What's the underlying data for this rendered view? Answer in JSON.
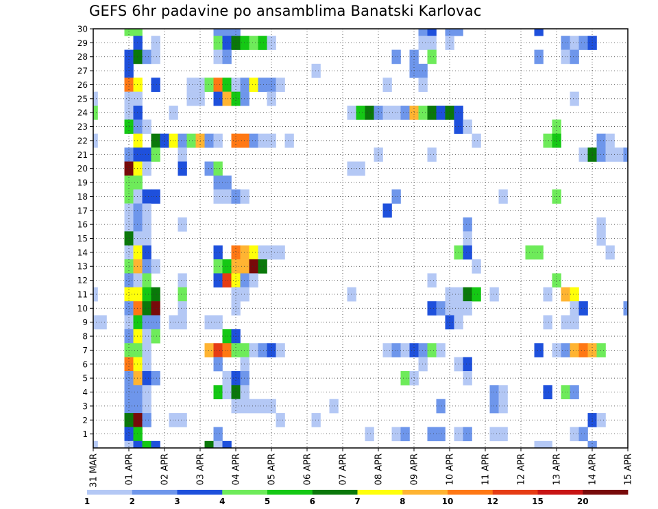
{
  "chart_data": {
    "type": "heatmap",
    "title": "GEFS 6hr padavine po ansamblima Banatski Karlovac",
    "y_range": [
      0,
      30
    ],
    "y_ticks": [
      1,
      2,
      3,
      4,
      5,
      6,
      7,
      8,
      9,
      10,
      11,
      12,
      13,
      14,
      15,
      16,
      17,
      18,
      19,
      20,
      21,
      22,
      23,
      24,
      25,
      26,
      27,
      28,
      29,
      30
    ],
    "x_time_step": "6hr",
    "x_range_steps": [
      0,
      60
    ],
    "x_ticks": [
      {
        "label": "31 MAR",
        "step": 0
      },
      {
        "label": "01 APR",
        "step": 4
      },
      {
        "label": "02 APR",
        "step": 8
      },
      {
        "label": "03 APR",
        "step": 12
      },
      {
        "label": "04 APR",
        "step": 16
      },
      {
        "label": "05 APR",
        "step": 20
      },
      {
        "label": "06 APR",
        "step": 24
      },
      {
        "label": "07 APR",
        "step": 28
      },
      {
        "label": "08 APR",
        "step": 32
      },
      {
        "label": "09 APR",
        "step": 36
      },
      {
        "label": "10 APR",
        "step": 40
      },
      {
        "label": "11 APR",
        "step": 44
      },
      {
        "label": "12 APR",
        "step": 48
      },
      {
        "label": "13 APR",
        "step": 52
      },
      {
        "label": "14 APR",
        "step": 56
      },
      {
        "label": "15 APR",
        "step": 60
      }
    ],
    "grid": true,
    "colorbar": {
      "boundaries": [
        "1",
        "2",
        "3",
        "4",
        "5",
        "6",
        "7",
        "8",
        "10",
        "12",
        "15",
        "20"
      ],
      "colors": [
        "#b4c8f5",
        "#6e96eb",
        "#1e50dc",
        "#6eeb5a",
        "#14c814",
        "#0a780a",
        "#ffff0a",
        "#ffb432",
        "#ff7814",
        "#e63c14",
        "#c81414",
        "#780a0a"
      ]
    },
    "cells": [
      [
        4,
        30,
        3
      ],
      [
        5,
        30,
        3
      ],
      [
        14,
        30,
        1
      ],
      [
        15,
        30,
        1
      ],
      [
        16,
        30,
        1
      ],
      [
        37,
        30,
        1
      ],
      [
        38,
        30,
        2
      ],
      [
        40,
        30,
        1
      ],
      [
        41,
        30,
        1
      ],
      [
        50,
        30,
        2
      ],
      [
        5,
        29,
        2
      ],
      [
        7,
        29,
        0
      ],
      [
        14,
        29,
        3
      ],
      [
        15,
        29,
        2
      ],
      [
        16,
        29,
        5
      ],
      [
        17,
        29,
        4
      ],
      [
        18,
        29,
        3
      ],
      [
        19,
        29,
        4
      ],
      [
        20,
        29,
        0
      ],
      [
        37,
        29,
        0
      ],
      [
        38,
        29,
        0
      ],
      [
        40,
        29,
        0
      ],
      [
        53,
        29,
        1
      ],
      [
        54,
        29,
        0
      ],
      [
        55,
        29,
        1
      ],
      [
        56,
        29,
        2
      ],
      [
        4,
        28,
        2
      ],
      [
        5,
        28,
        5
      ],
      [
        6,
        28,
        1
      ],
      [
        7,
        28,
        0
      ],
      [
        14,
        28,
        0
      ],
      [
        15,
        28,
        1
      ],
      [
        34,
        28,
        1
      ],
      [
        36,
        28,
        1
      ],
      [
        38,
        28,
        3
      ],
      [
        50,
        28,
        1
      ],
      [
        53,
        28,
        0
      ],
      [
        54,
        28,
        1
      ],
      [
        4,
        27,
        2
      ],
      [
        25,
        27,
        0
      ],
      [
        36,
        27,
        1
      ],
      [
        37,
        27,
        1
      ],
      [
        4,
        26,
        8
      ],
      [
        5,
        26,
        6
      ],
      [
        7,
        26,
        2
      ],
      [
        11,
        26,
        0
      ],
      [
        12,
        26,
        0
      ],
      [
        13,
        26,
        3
      ],
      [
        14,
        26,
        8
      ],
      [
        15,
        26,
        4
      ],
      [
        16,
        26,
        0
      ],
      [
        17,
        26,
        1
      ],
      [
        18,
        26,
        6
      ],
      [
        19,
        26,
        1
      ],
      [
        20,
        26,
        1
      ],
      [
        21,
        26,
        0
      ],
      [
        33,
        26,
        0
      ],
      [
        37,
        26,
        0
      ],
      [
        0,
        25,
        0
      ],
      [
        4,
        25,
        0
      ],
      [
        5,
        25,
        0
      ],
      [
        11,
        25,
        0
      ],
      [
        12,
        25,
        0
      ],
      [
        14,
        25,
        2
      ],
      [
        15,
        25,
        7
      ],
      [
        16,
        25,
        4
      ],
      [
        17,
        25,
        1
      ],
      [
        20,
        25,
        0
      ],
      [
        54,
        25,
        0
      ],
      [
        0,
        24,
        3
      ],
      [
        4,
        24,
        0
      ],
      [
        5,
        24,
        2
      ],
      [
        9,
        24,
        0
      ],
      [
        29,
        24,
        0
      ],
      [
        30,
        24,
        4
      ],
      [
        31,
        24,
        5
      ],
      [
        32,
        24,
        1
      ],
      [
        33,
        24,
        0
      ],
      [
        34,
        24,
        0
      ],
      [
        35,
        24,
        1
      ],
      [
        36,
        24,
        7
      ],
      [
        37,
        24,
        3
      ],
      [
        38,
        24,
        5
      ],
      [
        39,
        24,
        2
      ],
      [
        40,
        24,
        5
      ],
      [
        41,
        24,
        2
      ],
      [
        4,
        23,
        4
      ],
      [
        5,
        23,
        1
      ],
      [
        6,
        23,
        0
      ],
      [
        41,
        23,
        2
      ],
      [
        42,
        23,
        0
      ],
      [
        52,
        23,
        3
      ],
      [
        0,
        22,
        0
      ],
      [
        5,
        22,
        6
      ],
      [
        7,
        22,
        5
      ],
      [
        8,
        22,
        2
      ],
      [
        9,
        22,
        6
      ],
      [
        10,
        22,
        1
      ],
      [
        11,
        22,
        3
      ],
      [
        12,
        22,
        7
      ],
      [
        13,
        22,
        1
      ],
      [
        14,
        22,
        0
      ],
      [
        16,
        22,
        8
      ],
      [
        17,
        22,
        8
      ],
      [
        18,
        22,
        1
      ],
      [
        19,
        22,
        0
      ],
      [
        20,
        22,
        0
      ],
      [
        22,
        22,
        0
      ],
      [
        43,
        22,
        0
      ],
      [
        51,
        22,
        3
      ],
      [
        52,
        22,
        4
      ],
      [
        57,
        22,
        1
      ],
      [
        58,
        22,
        0
      ],
      [
        4,
        21,
        1
      ],
      [
        5,
        21,
        2
      ],
      [
        6,
        21,
        2
      ],
      [
        7,
        21,
        3
      ],
      [
        10,
        21,
        0
      ],
      [
        32,
        21,
        0
      ],
      [
        38,
        21,
        0
      ],
      [
        55,
        21,
        0
      ],
      [
        56,
        21,
        5
      ],
      [
        57,
        21,
        1
      ],
      [
        58,
        21,
        0
      ],
      [
        59,
        21,
        0
      ],
      [
        60,
        21,
        1
      ],
      [
        4,
        20,
        11
      ],
      [
        5,
        20,
        6
      ],
      [
        6,
        20,
        0
      ],
      [
        10,
        20,
        2
      ],
      [
        13,
        20,
        1
      ],
      [
        14,
        20,
        3
      ],
      [
        29,
        20,
        0
      ],
      [
        30,
        20,
        0
      ],
      [
        4,
        19,
        3
      ],
      [
        5,
        19,
        3
      ],
      [
        14,
        19,
        1
      ],
      [
        15,
        19,
        1
      ],
      [
        4,
        18,
        3
      ],
      [
        5,
        18,
        0
      ],
      [
        6,
        18,
        2
      ],
      [
        7,
        18,
        2
      ],
      [
        14,
        18,
        0
      ],
      [
        15,
        18,
        0
      ],
      [
        16,
        18,
        1
      ],
      [
        17,
        18,
        0
      ],
      [
        34,
        18,
        1
      ],
      [
        46,
        18,
        0
      ],
      [
        52,
        18,
        3
      ],
      [
        4,
        17,
        0
      ],
      [
        5,
        17,
        1
      ],
      [
        6,
        17,
        0
      ],
      [
        33,
        17,
        2
      ],
      [
        4,
        16,
        0
      ],
      [
        5,
        16,
        1
      ],
      [
        6,
        16,
        0
      ],
      [
        10,
        16,
        0
      ],
      [
        42,
        16,
        1
      ],
      [
        57,
        16,
        0
      ],
      [
        4,
        15,
        5
      ],
      [
        5,
        15,
        0
      ],
      [
        6,
        15,
        0
      ],
      [
        42,
        15,
        0
      ],
      [
        57,
        15,
        0
      ],
      [
        4,
        14,
        0
      ],
      [
        5,
        14,
        6
      ],
      [
        6,
        14,
        2
      ],
      [
        14,
        14,
        2
      ],
      [
        16,
        14,
        8
      ],
      [
        17,
        14,
        7
      ],
      [
        18,
        14,
        6
      ],
      [
        19,
        14,
        0
      ],
      [
        20,
        14,
        0
      ],
      [
        21,
        14,
        0
      ],
      [
        41,
        14,
        3
      ],
      [
        42,
        14,
        2
      ],
      [
        49,
        14,
        3
      ],
      [
        50,
        14,
        3
      ],
      [
        58,
        14,
        0
      ],
      [
        4,
        13,
        3
      ],
      [
        5,
        13,
        7
      ],
      [
        6,
        13,
        1
      ],
      [
        7,
        13,
        0
      ],
      [
        14,
        13,
        3
      ],
      [
        15,
        13,
        4
      ],
      [
        16,
        13,
        7
      ],
      [
        17,
        13,
        7
      ],
      [
        18,
        13,
        11
      ],
      [
        19,
        13,
        5
      ],
      [
        43,
        13,
        0
      ],
      [
        4,
        12,
        1
      ],
      [
        5,
        12,
        0
      ],
      [
        6,
        12,
        3
      ],
      [
        10,
        12,
        0
      ],
      [
        14,
        12,
        2
      ],
      [
        15,
        12,
        9
      ],
      [
        16,
        12,
        6
      ],
      [
        17,
        12,
        1
      ],
      [
        18,
        12,
        0
      ],
      [
        38,
        12,
        0
      ],
      [
        52,
        12,
        3
      ],
      [
        0,
        11,
        0
      ],
      [
        4,
        11,
        6
      ],
      [
        5,
        11,
        6
      ],
      [
        6,
        11,
        4
      ],
      [
        7,
        11,
        5
      ],
      [
        10,
        11,
        3
      ],
      [
        16,
        11,
        0
      ],
      [
        17,
        11,
        0
      ],
      [
        29,
        11,
        0
      ],
      [
        40,
        11,
        0
      ],
      [
        41,
        11,
        0
      ],
      [
        42,
        11,
        5
      ],
      [
        43,
        11,
        4
      ],
      [
        45,
        11,
        0
      ],
      [
        51,
        11,
        0
      ],
      [
        53,
        11,
        7
      ],
      [
        54,
        11,
        6
      ],
      [
        4,
        10,
        1
      ],
      [
        5,
        10,
        8
      ],
      [
        6,
        10,
        5
      ],
      [
        7,
        10,
        11
      ],
      [
        10,
        10,
        0
      ],
      [
        16,
        10,
        0
      ],
      [
        38,
        10,
        2
      ],
      [
        39,
        10,
        1
      ],
      [
        40,
        10,
        0
      ],
      [
        41,
        10,
        0
      ],
      [
        42,
        10,
        0
      ],
      [
        54,
        10,
        0
      ],
      [
        55,
        10,
        2
      ],
      [
        60,
        10,
        1
      ],
      [
        0,
        9,
        0
      ],
      [
        1,
        9,
        0
      ],
      [
        4,
        9,
        0
      ],
      [
        5,
        9,
        4
      ],
      [
        6,
        9,
        1
      ],
      [
        7,
        9,
        1
      ],
      [
        9,
        9,
        0
      ],
      [
        10,
        9,
        0
      ],
      [
        13,
        9,
        0
      ],
      [
        14,
        9,
        0
      ],
      [
        40,
        9,
        2
      ],
      [
        41,
        9,
        0
      ],
      [
        51,
        9,
        0
      ],
      [
        53,
        9,
        0
      ],
      [
        54,
        9,
        0
      ],
      [
        4,
        8,
        1
      ],
      [
        5,
        8,
        6
      ],
      [
        6,
        8,
        0
      ],
      [
        7,
        8,
        3
      ],
      [
        15,
        8,
        4
      ],
      [
        16,
        8,
        2
      ],
      [
        4,
        7,
        3
      ],
      [
        5,
        7,
        3
      ],
      [
        6,
        7,
        0
      ],
      [
        13,
        7,
        7
      ],
      [
        14,
        7,
        9
      ],
      [
        15,
        7,
        8
      ],
      [
        16,
        7,
        3
      ],
      [
        17,
        7,
        3
      ],
      [
        18,
        7,
        0
      ],
      [
        19,
        7,
        1
      ],
      [
        20,
        7,
        2
      ],
      [
        21,
        7,
        0
      ],
      [
        33,
        7,
        0
      ],
      [
        34,
        7,
        1
      ],
      [
        35,
        7,
        0
      ],
      [
        36,
        7,
        2
      ],
      [
        37,
        7,
        1
      ],
      [
        38,
        7,
        3
      ],
      [
        39,
        7,
        0
      ],
      [
        50,
        7,
        2
      ],
      [
        52,
        7,
        0
      ],
      [
        53,
        7,
        1
      ],
      [
        54,
        7,
        7
      ],
      [
        55,
        7,
        8
      ],
      [
        56,
        7,
        7
      ],
      [
        57,
        7,
        3
      ],
      [
        4,
        6,
        8
      ],
      [
        5,
        6,
        6
      ],
      [
        6,
        6,
        0
      ],
      [
        14,
        6,
        1
      ],
      [
        17,
        6,
        0
      ],
      [
        37,
        6,
        0
      ],
      [
        41,
        6,
        0
      ],
      [
        42,
        6,
        2
      ],
      [
        4,
        5,
        1
      ],
      [
        5,
        5,
        7
      ],
      [
        6,
        5,
        2
      ],
      [
        7,
        5,
        1
      ],
      [
        15,
        5,
        0
      ],
      [
        16,
        5,
        2
      ],
      [
        17,
        5,
        1
      ],
      [
        35,
        5,
        3
      ],
      [
        36,
        5,
        0
      ],
      [
        42,
        5,
        0
      ],
      [
        4,
        4,
        1
      ],
      [
        5,
        4,
        1
      ],
      [
        6,
        4,
        0
      ],
      [
        14,
        4,
        4
      ],
      [
        15,
        4,
        0
      ],
      [
        16,
        4,
        5
      ],
      [
        17,
        4,
        0
      ],
      [
        45,
        4,
        1
      ],
      [
        46,
        4,
        0
      ],
      [
        51,
        4,
        2
      ],
      [
        53,
        4,
        3
      ],
      [
        54,
        4,
        1
      ],
      [
        4,
        3,
        1
      ],
      [
        5,
        3,
        1
      ],
      [
        6,
        3,
        0
      ],
      [
        16,
        3,
        0
      ],
      [
        17,
        3,
        0
      ],
      [
        18,
        3,
        0
      ],
      [
        19,
        3,
        0
      ],
      [
        20,
        3,
        0
      ],
      [
        27,
        3,
        0
      ],
      [
        39,
        3,
        1
      ],
      [
        45,
        3,
        1
      ],
      [
        46,
        3,
        0
      ],
      [
        4,
        2,
        5
      ],
      [
        5,
        2,
        11
      ],
      [
        6,
        2,
        1
      ],
      [
        9,
        2,
        0
      ],
      [
        10,
        2,
        0
      ],
      [
        21,
        2,
        0
      ],
      [
        25,
        2,
        0
      ],
      [
        56,
        2,
        2
      ],
      [
        57,
        2,
        0
      ],
      [
        4,
        1,
        2
      ],
      [
        5,
        1,
        4
      ],
      [
        14,
        1,
        1
      ],
      [
        31,
        1,
        0
      ],
      [
        34,
        1,
        0
      ],
      [
        35,
        1,
        1
      ],
      [
        38,
        1,
        1
      ],
      [
        39,
        1,
        1
      ],
      [
        41,
        1,
        0
      ],
      [
        42,
        1,
        1
      ],
      [
        45,
        1,
        0
      ],
      [
        46,
        1,
        0
      ],
      [
        54,
        1,
        0
      ],
      [
        55,
        1,
        1
      ],
      [
        0,
        0,
        0
      ],
      [
        4,
        0,
        0
      ],
      [
        5,
        0,
        2
      ],
      [
        6,
        0,
        4
      ],
      [
        7,
        0,
        2
      ],
      [
        13,
        0,
        5
      ],
      [
        14,
        0,
        0
      ],
      [
        15,
        0,
        2
      ],
      [
        50,
        0,
        0
      ],
      [
        51,
        0,
        0
      ],
      [
        56,
        0,
        1
      ]
    ]
  }
}
